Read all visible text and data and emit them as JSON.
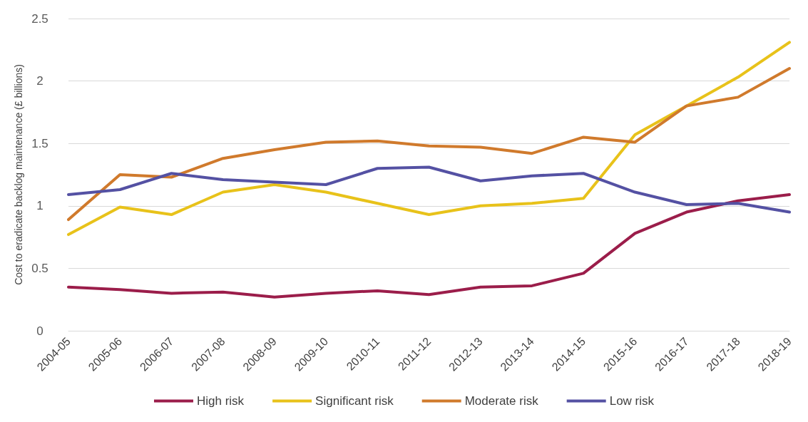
{
  "chart_data": {
    "type": "line",
    "ylabel": "Cost to eradicate backlog maintenance (£ billions)",
    "categories": [
      "2004-05",
      "2005-06",
      "2006-07",
      "2007-08",
      "2008-09",
      "2009-10",
      "2010-11",
      "2011-12",
      "2012-13",
      "2013-14",
      "2014-15",
      "2015-16",
      "2016-17",
      "2017-18",
      "2018-19"
    ],
    "series": [
      {
        "name": "High risk",
        "color": "#9b1d4a",
        "values": [
          0.35,
          0.33,
          0.3,
          0.31,
          0.27,
          0.3,
          0.32,
          0.29,
          0.35,
          0.36,
          0.46,
          0.78,
          0.95,
          1.04,
          1.09
        ]
      },
      {
        "name": "Significant risk",
        "color": "#e8c21a",
        "values": [
          0.77,
          0.99,
          0.93,
          1.11,
          1.17,
          1.11,
          1.02,
          0.93,
          1.0,
          1.02,
          1.06,
          1.57,
          1.8,
          2.03,
          2.31
        ]
      },
      {
        "name": "Moderate risk",
        "color": "#d07a2c",
        "values": [
          0.89,
          1.25,
          1.23,
          1.38,
          1.45,
          1.51,
          1.52,
          1.48,
          1.47,
          1.42,
          1.55,
          1.51,
          1.8,
          1.87,
          2.1
        ]
      },
      {
        "name": "Low risk",
        "color": "#5451a3",
        "values": [
          1.09,
          1.13,
          1.26,
          1.21,
          1.19,
          1.17,
          1.3,
          1.31,
          1.2,
          1.24,
          1.26,
          1.11,
          1.01,
          1.02,
          0.95
        ]
      }
    ],
    "ylim": [
      0,
      2.5
    ],
    "yticks": [
      0,
      0.5,
      1,
      1.5,
      2,
      2.5
    ],
    "grid": "y",
    "legend": "bottom",
    "marker": "none",
    "line_style": "solid"
  }
}
